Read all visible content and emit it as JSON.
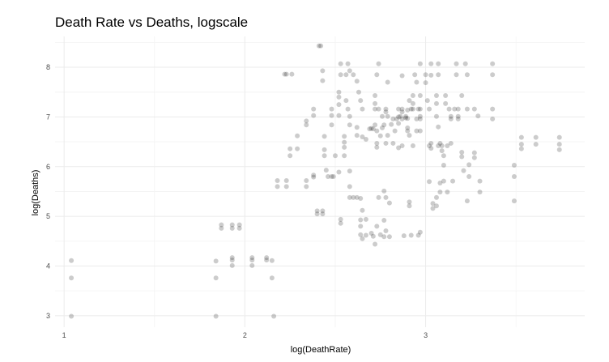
{
  "chart_data": {
    "type": "scatter",
    "title": "Death Rate vs Deaths, logscale",
    "xlabel": "log(DeathRate)",
    "ylabel": "log(Deaths)",
    "xlim": [
      0.95,
      3.88
    ],
    "ylim": [
      2.77,
      8.62
    ],
    "x_ticks": [
      1,
      2,
      3
    ],
    "y_ticks": [
      3,
      4,
      5,
      6,
      7,
      8
    ],
    "x_tick_labels": [
      "1",
      "2",
      "3"
    ],
    "y_tick_labels": [
      "3",
      "4",
      "5",
      "6",
      "7",
      "8"
    ],
    "grid": true,
    "legend": "none",
    "point_color": "#000000",
    "point_alpha": 0.2,
    "points": [
      [
        1.04,
        4.11
      ],
      [
        1.04,
        3.76
      ],
      [
        1.04,
        2.99
      ],
      [
        1.84,
        4.1
      ],
      [
        1.84,
        3.76
      ],
      [
        1.84,
        2.99
      ],
      [
        1.87,
        4.83
      ],
      [
        1.87,
        4.76
      ],
      [
        1.93,
        4.83
      ],
      [
        1.93,
        4.76
      ],
      [
        1.97,
        4.83
      ],
      [
        1.97,
        4.76
      ],
      [
        1.93,
        4.17
      ],
      [
        1.93,
        4.12
      ],
      [
        1.93,
        4.01
      ],
      [
        2.04,
        4.17
      ],
      [
        2.04,
        4.12
      ],
      [
        2.04,
        4.01
      ],
      [
        2.12,
        4.17
      ],
      [
        2.12,
        4.12
      ],
      [
        2.15,
        4.11
      ],
      [
        2.15,
        3.76
      ],
      [
        2.16,
        2.99
      ],
      [
        2.18,
        5.72
      ],
      [
        2.18,
        5.6
      ],
      [
        2.23,
        5.72
      ],
      [
        2.23,
        5.6
      ],
      [
        2.22,
        7.86
      ],
      [
        2.23,
        7.86
      ],
      [
        2.26,
        7.86
      ],
      [
        2.25,
        6.36
      ],
      [
        2.25,
        6.22
      ],
      [
        2.29,
        6.62
      ],
      [
        2.29,
        6.36
      ],
      [
        2.34,
        6.92
      ],
      [
        2.34,
        6.84
      ],
      [
        2.34,
        5.72
      ],
      [
        2.34,
        5.6
      ],
      [
        2.38,
        7.16
      ],
      [
        2.38,
        7.03
      ],
      [
        2.38,
        5.83
      ],
      [
        2.38,
        5.79
      ],
      [
        2.4,
        5.11
      ],
      [
        2.4,
        5.05
      ],
      [
        2.41,
        8.43
      ],
      [
        2.42,
        8.43
      ],
      [
        2.43,
        7.93
      ],
      [
        2.43,
        7.73
      ],
      [
        2.43,
        5.11
      ],
      [
        2.43,
        5.05
      ],
      [
        2.44,
        6.61
      ],
      [
        2.44,
        6.34
      ],
      [
        2.44,
        6.22
      ],
      [
        2.45,
        5.93
      ],
      [
        2.46,
        5.8
      ],
      [
        2.48,
        5.8
      ],
      [
        2.48,
        7.16
      ],
      [
        2.48,
        7.03
      ],
      [
        2.48,
        6.84
      ],
      [
        2.49,
        5.8
      ],
      [
        2.5,
        6.22
      ],
      [
        2.52,
        7.5
      ],
      [
        2.52,
        7.4
      ],
      [
        2.52,
        7.25
      ],
      [
        2.52,
        7.03
      ],
      [
        2.52,
        5.89
      ],
      [
        2.53,
        7.85
      ],
      [
        2.53,
        8.07
      ],
      [
        2.53,
        4.94
      ],
      [
        2.53,
        4.86
      ],
      [
        2.55,
        6.61
      ],
      [
        2.55,
        6.49
      ],
      [
        2.55,
        6.39
      ],
      [
        2.55,
        6.22
      ],
      [
        2.56,
        7.85
      ],
      [
        2.56,
        7.33
      ],
      [
        2.57,
        7.16
      ],
      [
        2.57,
        8.07
      ],
      [
        2.58,
        7.93
      ],
      [
        2.58,
        7.01
      ],
      [
        2.58,
        6.84
      ],
      [
        2.58,
        5.91
      ],
      [
        2.58,
        5.6
      ],
      [
        2.58,
        5.38
      ],
      [
        2.6,
        7.85
      ],
      [
        2.6,
        5.38
      ],
      [
        2.62,
        7.72
      ],
      [
        2.62,
        6.79
      ],
      [
        2.62,
        6.63
      ],
      [
        2.62,
        5.38
      ],
      [
        2.63,
        7.5
      ],
      [
        2.64,
        7.33
      ],
      [
        2.64,
        5.36
      ],
      [
        2.64,
        4.93
      ],
      [
        2.64,
        4.8
      ],
      [
        2.64,
        4.63
      ],
      [
        2.65,
        7.16
      ],
      [
        2.65,
        6.6
      ],
      [
        2.65,
        5.12
      ],
      [
        2.65,
        4.55
      ],
      [
        2.67,
        6.55
      ],
      [
        2.67,
        4.94
      ],
      [
        2.67,
        4.62
      ],
      [
        2.69,
        6.76
      ],
      [
        2.7,
        6.77
      ],
      [
        2.7,
        4.66
      ],
      [
        2.71,
        6.76
      ],
      [
        2.71,
        4.6
      ],
      [
        2.72,
        7.43
      ],
      [
        2.72,
        7.27
      ],
      [
        2.72,
        7.16
      ],
      [
        2.72,
        6.84
      ],
      [
        2.72,
        4.44
      ],
      [
        2.73,
        7.85
      ],
      [
        2.73,
        6.72
      ],
      [
        2.73,
        6.47
      ],
      [
        2.73,
        6.39
      ],
      [
        2.73,
        4.8
      ],
      [
        2.74,
        8.07
      ],
      [
        2.74,
        7.16
      ],
      [
        2.74,
        5.38
      ],
      [
        2.75,
        6.62
      ],
      [
        2.75,
        4.63
      ],
      [
        2.76,
        7.01
      ],
      [
        2.76,
        6.78
      ],
      [
        2.77,
        6.84
      ],
      [
        2.77,
        5.51
      ],
      [
        2.77,
        4.92
      ],
      [
        2.77,
        4.59
      ],
      [
        2.78,
        7.16
      ],
      [
        2.78,
        7.1
      ],
      [
        2.78,
        6.47
      ],
      [
        2.78,
        5.38
      ],
      [
        2.78,
        4.71
      ],
      [
        2.79,
        7.7
      ],
      [
        2.79,
        7.01
      ],
      [
        2.79,
        6.63
      ],
      [
        2.8,
        5.27
      ],
      [
        2.8,
        4.59
      ],
      [
        2.81,
        6.85
      ],
      [
        2.82,
        6.96
      ],
      [
        2.82,
        6.47
      ],
      [
        2.83,
        6.72
      ],
      [
        2.84,
        6.96
      ],
      [
        2.85,
        7.16
      ],
      [
        2.85,
        7.0
      ],
      [
        2.85,
        6.87
      ],
      [
        2.85,
        6.38
      ],
      [
        2.86,
        7.01
      ],
      [
        2.87,
        7.83
      ],
      [
        2.87,
        7.16
      ],
      [
        2.87,
        7.1
      ],
      [
        2.87,
        6.96
      ],
      [
        2.87,
        6.42
      ],
      [
        2.88,
        4.61
      ],
      [
        2.89,
        7.01
      ],
      [
        2.89,
        6.98
      ],
      [
        2.9,
        7.14
      ],
      [
        2.9,
        6.97
      ],
      [
        2.9,
        6.78
      ],
      [
        2.9,
        6.72
      ],
      [
        2.91,
        7.33
      ],
      [
        2.91,
        6.63
      ],
      [
        2.91,
        5.29
      ],
      [
        2.91,
        5.21
      ],
      [
        2.92,
        7.16
      ],
      [
        2.92,
        4.62
      ],
      [
        2.93,
        7.43
      ],
      [
        2.93,
        7.27
      ],
      [
        2.93,
        7.16
      ],
      [
        2.93,
        6.42
      ],
      [
        2.94,
        7.85
      ],
      [
        2.95,
        7.7
      ],
      [
        2.95,
        6.96
      ],
      [
        2.95,
        6.72
      ],
      [
        2.96,
        7.16
      ],
      [
        2.96,
        4.62
      ],
      [
        2.97,
        8.07
      ],
      [
        2.97,
        7.43
      ],
      [
        2.97,
        7.16
      ],
      [
        2.97,
        7.01
      ],
      [
        2.97,
        6.96
      ],
      [
        2.97,
        6.72
      ],
      [
        2.97,
        4.68
      ],
      [
        3.0,
        7.85
      ],
      [
        3.0,
        7.69
      ],
      [
        3.01,
        7.33
      ],
      [
        3.02,
        7.16
      ],
      [
        3.02,
        6.42
      ],
      [
        3.02,
        5.7
      ],
      [
        3.03,
        8.07
      ],
      [
        3.03,
        7.84
      ],
      [
        3.03,
        6.47
      ],
      [
        3.03,
        6.37
      ],
      [
        3.04,
        5.26
      ],
      [
        3.04,
        5.16
      ],
      [
        3.06,
        7.43
      ],
      [
        3.06,
        7.27
      ],
      [
        3.06,
        7.01
      ],
      [
        3.06,
        5.38
      ],
      [
        3.06,
        5.21
      ],
      [
        3.07,
        8.07
      ],
      [
        3.07,
        7.85
      ],
      [
        3.07,
        6.8
      ],
      [
        3.07,
        6.42
      ],
      [
        3.08,
        5.67
      ],
      [
        3.08,
        5.49
      ],
      [
        3.08,
        6.47
      ],
      [
        3.09,
        6.42
      ],
      [
        3.09,
        6.32
      ],
      [
        3.1,
        6.22
      ],
      [
        3.1,
        6.03
      ],
      [
        3.1,
        5.71
      ],
      [
        3.11,
        7.43
      ],
      [
        3.11,
        7.27
      ],
      [
        3.12,
        6.42
      ],
      [
        3.12,
        5.49
      ],
      [
        3.13,
        7.16
      ],
      [
        3.14,
        7.01
      ],
      [
        3.14,
        6.96
      ],
      [
        3.14,
        6.47
      ],
      [
        3.15,
        5.71
      ],
      [
        3.16,
        7.16
      ],
      [
        3.17,
        8.07
      ],
      [
        3.17,
        7.85
      ],
      [
        3.18,
        7.16
      ],
      [
        3.18,
        7.01
      ],
      [
        3.18,
        6.96
      ],
      [
        3.2,
        7.43
      ],
      [
        3.2,
        6.29
      ],
      [
        3.2,
        6.2
      ],
      [
        3.21,
        5.92
      ],
      [
        3.22,
        8.07
      ],
      [
        3.23,
        7.85
      ],
      [
        3.23,
        7.16
      ],
      [
        3.23,
        5.31
      ],
      [
        3.24,
        6.04
      ],
      [
        3.24,
        5.8
      ],
      [
        3.27,
        7.16
      ],
      [
        3.27,
        6.28
      ],
      [
        3.27,
        6.18
      ],
      [
        3.29,
        7.02
      ],
      [
        3.3,
        5.71
      ],
      [
        3.3,
        5.49
      ],
      [
        3.37,
        8.07
      ],
      [
        3.37,
        7.85
      ],
      [
        3.37,
        7.16
      ],
      [
        3.37,
        6.96
      ],
      [
        3.49,
        6.03
      ],
      [
        3.49,
        5.8
      ],
      [
        3.49,
        5.31
      ],
      [
        3.53,
        6.59
      ],
      [
        3.53,
        6.45
      ],
      [
        3.53,
        6.36
      ],
      [
        3.61,
        6.59
      ],
      [
        3.61,
        6.45
      ],
      [
        3.74,
        6.59
      ],
      [
        3.74,
        6.45
      ],
      [
        3.74,
        6.34
      ]
    ]
  }
}
